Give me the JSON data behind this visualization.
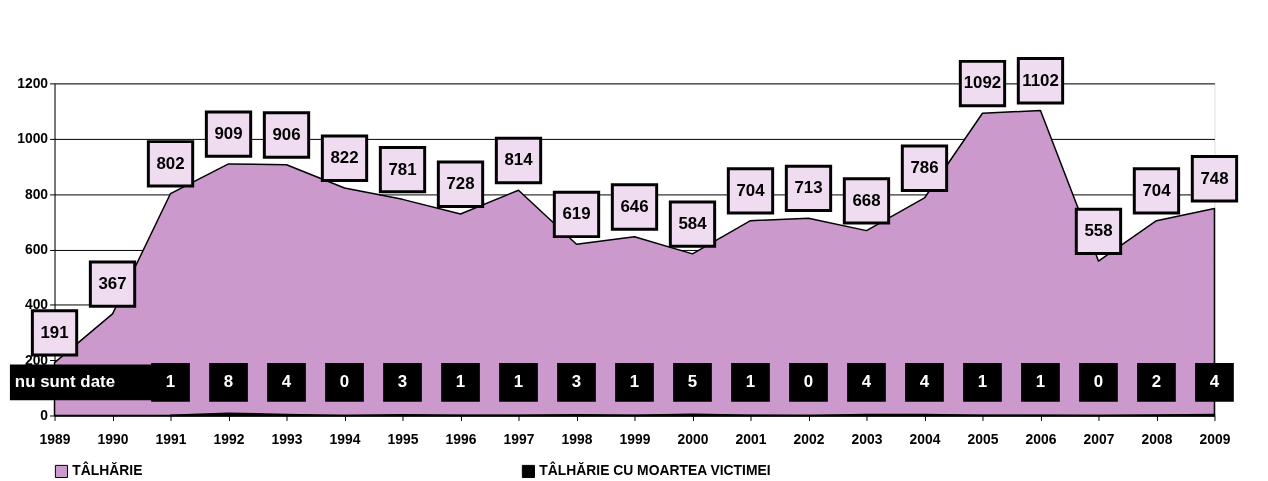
{
  "chart_data": {
    "type": "area",
    "categories": [
      "1989",
      "1990",
      "1991",
      "1992",
      "1993",
      "1994",
      "1995",
      "1996",
      "1997",
      "1998",
      "1999",
      "2000",
      "2001",
      "2002",
      "2003",
      "2004",
      "2005",
      "2006",
      "2007",
      "2008",
      "2009"
    ],
    "series": [
      {
        "name": "TÂLHĂRIE",
        "color": "#cc99cc",
        "values": [
          191,
          367,
          802,
          909,
          906,
          822,
          781,
          728,
          814,
          619,
          646,
          584,
          704,
          713,
          668,
          786,
          1092,
          1102,
          558,
          704,
          748
        ],
        "value_labels": [
          "191",
          "367",
          "802",
          "909",
          "906",
          "822",
          "781",
          "728",
          "814",
          "619",
          "646",
          "584",
          "704",
          "713",
          "668",
          "786",
          "1092",
          "1102",
          "558",
          "704",
          "748"
        ]
      },
      {
        "name": "TÂLHĂRIE CU MOARTEA VICTIMEI",
        "color": "#000000",
        "values": [
          null,
          null,
          1,
          8,
          4,
          0,
          3,
          1,
          1,
          3,
          1,
          5,
          1,
          0,
          4,
          4,
          1,
          1,
          0,
          2,
          4
        ],
        "value_labels": [
          null,
          null,
          "1",
          "8",
          "4",
          "0",
          "3",
          "1",
          "1",
          "3",
          "1",
          "5",
          "1",
          "0",
          "4",
          "4",
          "1",
          "1",
          "0",
          "2",
          "4"
        ]
      }
    ],
    "ylim": [
      0,
      1200
    ],
    "yticks": [
      0,
      200,
      400,
      600,
      800,
      1000,
      1200
    ],
    "grid": "y",
    "legend": "bottom",
    "annotations": [
      "nu sunt date"
    ]
  }
}
